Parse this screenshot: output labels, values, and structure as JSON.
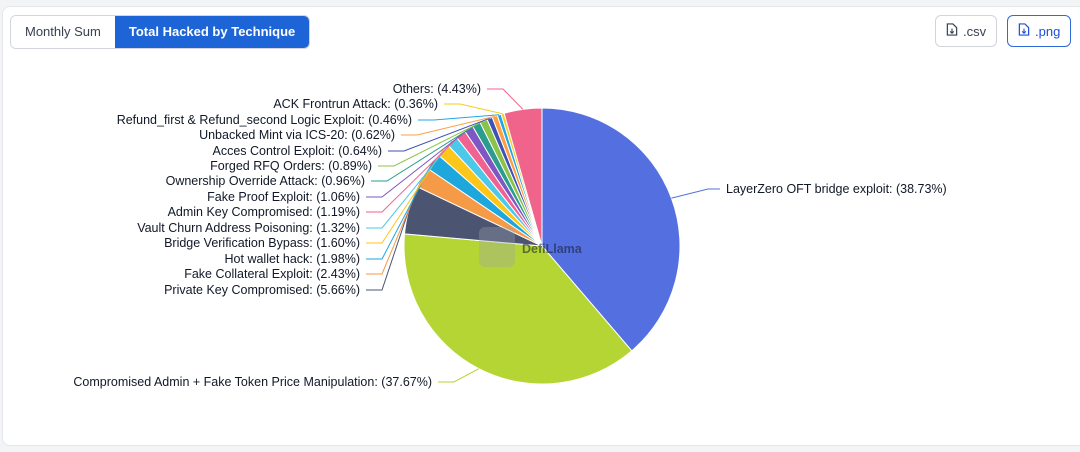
{
  "toolbar": {
    "tabs": [
      {
        "label": "Monthly Sum",
        "active": false
      },
      {
        "label": "Total Hacked by Technique",
        "active": true
      }
    ],
    "csv_label": ".csv",
    "png_label": ".png"
  },
  "watermark": "DefiLlama",
  "chart_data": {
    "type": "pie",
    "slices": [
      {
        "label": "LayerZero OFT bridge exploit",
        "value": 38.73,
        "color": "#5470e0"
      },
      {
        "label": "Compromised Admin + Fake Token Price Manipulation",
        "value": 37.67,
        "color": "#b5d534"
      },
      {
        "label": "Private Key Compromised",
        "value": 5.66,
        "color": "#4b5470"
      },
      {
        "label": "Fake Collateral Exploit",
        "value": 2.43,
        "color": "#f59a46"
      },
      {
        "label": "Hot wallet hack",
        "value": 1.98,
        "color": "#1da7dd"
      },
      {
        "label": "Bridge Verification Bypass",
        "value": 1.6,
        "color": "#fcc61a"
      },
      {
        "label": "Vault Churn Address Poisoning",
        "value": 1.32,
        "color": "#4dc8e8"
      },
      {
        "label": "Admin Key Compromised",
        "value": 1.19,
        "color": "#f06292"
      },
      {
        "label": "Fake Proof Exploit",
        "value": 1.06,
        "color": "#7e57c2"
      },
      {
        "label": "Ownership Override Attack",
        "value": 0.96,
        "color": "#2a9d8f"
      },
      {
        "label": "Forged RFQ Orders",
        "value": 0.89,
        "color": "#8bc34a"
      },
      {
        "label": "Acces Control Exploit",
        "value": 0.64,
        "color": "#3f51b5"
      },
      {
        "label": "Unbacked Mint via ICS-20",
        "value": 0.62,
        "color": "#ff9f43"
      },
      {
        "label": "Refund_first & Refund_second Logic Exploit",
        "value": 0.46,
        "color": "#26a5e4"
      },
      {
        "label": "ACK Frontrun Attack",
        "value": 0.36,
        "color": "#f5cd1e"
      },
      {
        "label": "Others",
        "value": 4.43,
        "color": "#f0648c"
      }
    ]
  }
}
